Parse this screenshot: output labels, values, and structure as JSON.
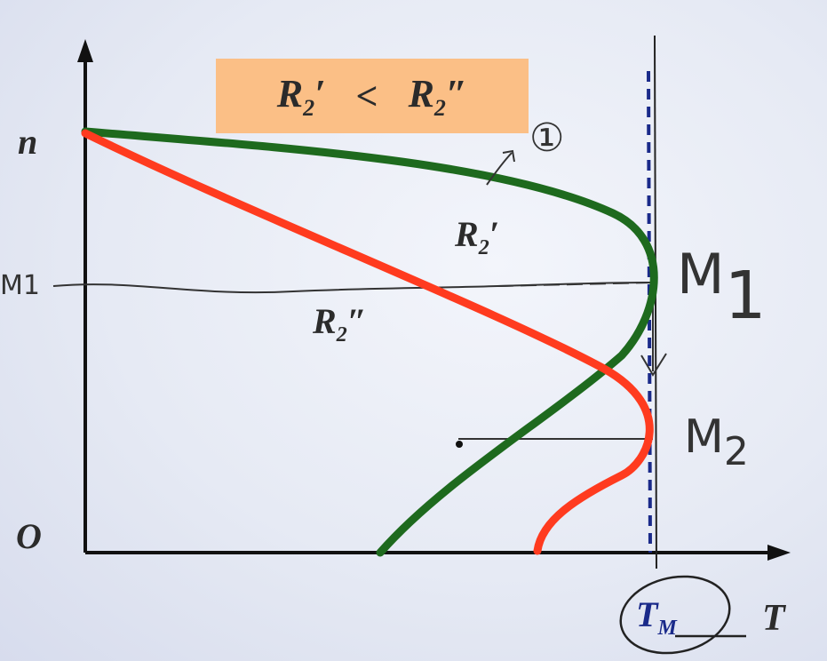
{
  "condition": {
    "left": "R",
    "left_sub": "2",
    "left_mark": "′",
    "op": "<",
    "right": "R",
    "right_sub": "2",
    "right_mark": "″"
  },
  "axes": {
    "y_label": "n",
    "x_label": "T",
    "origin_label": "O",
    "x_tick_label": "T",
    "x_tick_sub": "M"
  },
  "curves": [
    {
      "name": "R",
      "sub": "2",
      "mark": "′",
      "color": "#1e6a1e"
    },
    {
      "name": "R",
      "sub": "2",
      "mark": "″",
      "color": "#ff3b1f"
    }
  ],
  "handwriting": {
    "m1_left": "M1",
    "m1_right_letter": "M",
    "m1_right_digit": "1",
    "m2_letter": "M",
    "m2_digit": "2",
    "note": "①"
  },
  "colors": {
    "box": "#fbbf86",
    "dashed_line": "#1a2a8a",
    "axis": "#111111"
  }
}
